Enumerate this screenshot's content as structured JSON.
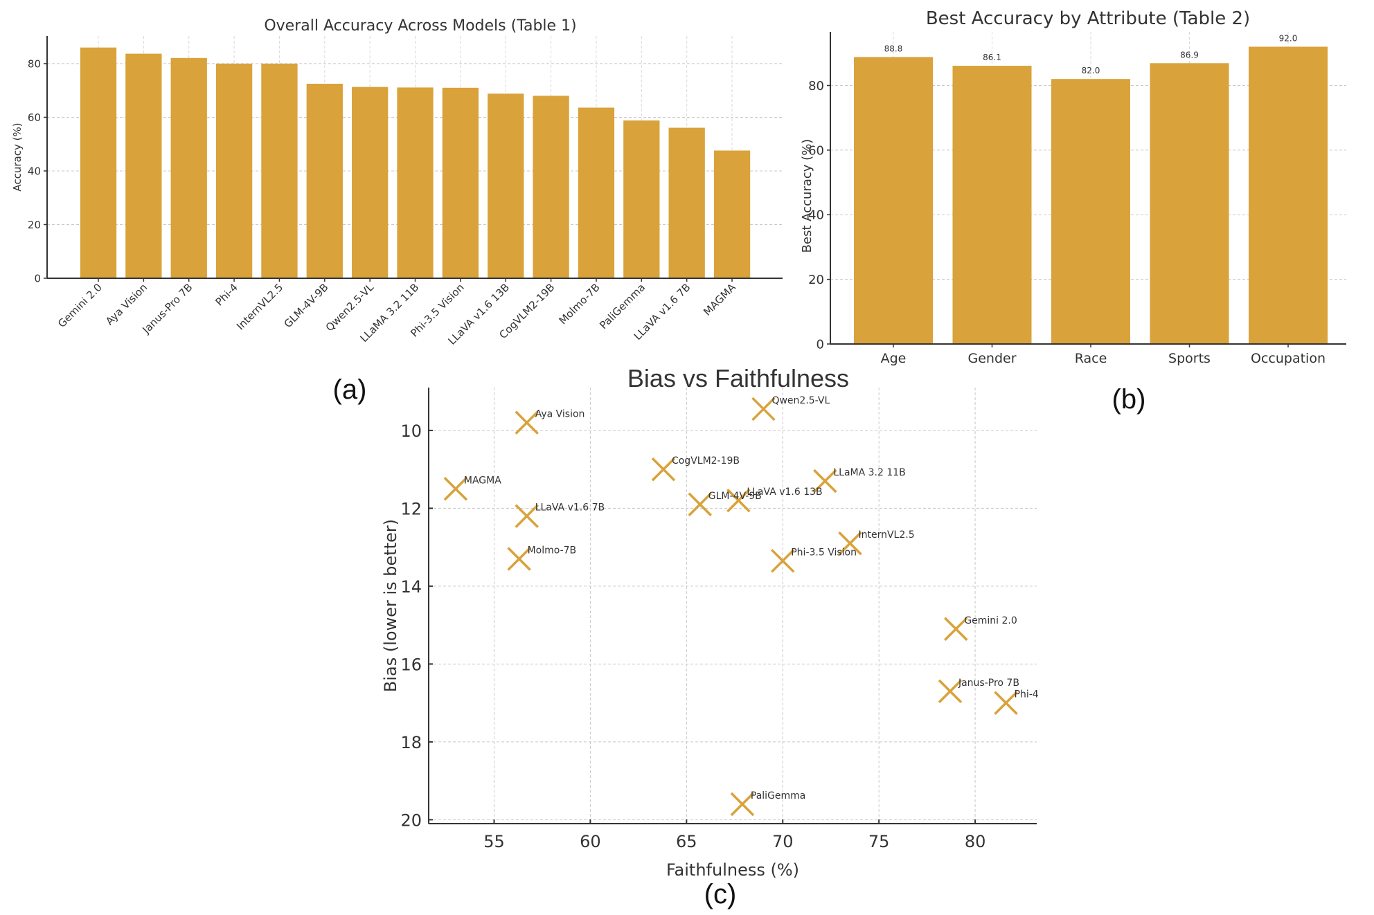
{
  "chart_data": [
    {
      "id": "a",
      "type": "bar",
      "title": "Overall Accuracy Across Models (Table 1)",
      "xlabel": "",
      "ylabel": "Accuracy (%)",
      "ylim": [
        0,
        90.3
      ],
      "yticks": [
        0,
        20,
        40,
        60,
        80
      ],
      "grid": true,
      "categories": [
        "Gemini 2.0",
        "Aya Vision",
        "Janus-Pro 7B",
        "Phi-4",
        "InternVL2.5",
        "GLM-4V-9B",
        "Qwen2.5-VL",
        "LLaMA 3.2 11B",
        "Phi-3.5 Vision",
        "LLaVA v1.6 13B",
        "CogVLM2-19B",
        "Molmo-7B",
        "PaliGemma",
        "LLaVA v1.6 7B",
        "MAGMA"
      ],
      "values": [
        86.0,
        83.7,
        82.1,
        80.0,
        80.0,
        72.5,
        71.3,
        71.1,
        71.0,
        68.8,
        68.0,
        63.6,
        58.8,
        56.1,
        47.6
      ],
      "color": "#d9a23a",
      "panel_label": "(a)"
    },
    {
      "id": "b",
      "type": "bar",
      "title": "Best Accuracy by Attribute (Table 2)",
      "xlabel": "",
      "ylabel": "Best Accuracy (%)",
      "ylim": [
        0,
        96.6
      ],
      "yticks": [
        0,
        20,
        40,
        60,
        80
      ],
      "grid": true,
      "categories": [
        "Age",
        "Gender",
        "Race",
        "Sports",
        "Occupation"
      ],
      "values": [
        88.8,
        86.1,
        82.0,
        86.9,
        92.0
      ],
      "data_labels": [
        "88.8",
        "86.1",
        "82.0",
        "86.9",
        "92.0"
      ],
      "color": "#d9a23a",
      "panel_label": "(b)"
    },
    {
      "id": "c",
      "type": "scatter",
      "title": "Bias vs Faithfulness",
      "xlabel": "Faithfulness (%)",
      "ylabel": "Bias (lower is better)",
      "xlim": [
        51.6,
        83.2
      ],
      "ylim": [
        20.1,
        8.9
      ],
      "y_inverted": true,
      "xticks": [
        55,
        60,
        65,
        70,
        75,
        80
      ],
      "yticks": [
        10,
        12,
        14,
        16,
        18,
        20
      ],
      "grid": true,
      "marker": "x",
      "color": "#d9a23a",
      "points": [
        {
          "label": "Aya Vision",
          "x": 56.7,
          "y": 9.8
        },
        {
          "label": "Qwen2.5-VL",
          "x": 69.0,
          "y": 9.45
        },
        {
          "label": "CogVLM2-19B",
          "x": 63.8,
          "y": 11.0
        },
        {
          "label": "MAGMA",
          "x": 53.0,
          "y": 11.5
        },
        {
          "label": "LLaMA 3.2 11B",
          "x": 72.2,
          "y": 11.3
        },
        {
          "label": "LLaVA v1.6 13B",
          "x": 67.7,
          "y": 11.8
        },
        {
          "label": "GLM-4V-9B",
          "x": 65.7,
          "y": 11.9
        },
        {
          "label": "LLaVA v1.6 7B",
          "x": 56.7,
          "y": 12.2
        },
        {
          "label": "InternVL2.5",
          "x": 73.5,
          "y": 12.9
        },
        {
          "label": "Molmo-7B",
          "x": 56.3,
          "y": 13.3
        },
        {
          "label": "Phi-3.5 Vision",
          "x": 70.0,
          "y": 13.35
        },
        {
          "label": "Gemini 2.0",
          "x": 79.0,
          "y": 15.1
        },
        {
          "label": "Janus-Pro 7B",
          "x": 78.7,
          "y": 16.7
        },
        {
          "label": "Phi-4",
          "x": 81.6,
          "y": 17.0
        },
        {
          "label": "PaliGemma",
          "x": 67.9,
          "y": 19.6
        }
      ],
      "panel_label": "(c)"
    }
  ]
}
